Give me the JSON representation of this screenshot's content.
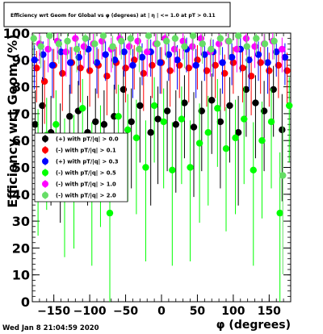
{
  "chart_data": {
    "type": "scatter",
    "title": "Efficiency wrt Geom for Global vs φ (degrees) at | η | <= 1.0 at pT > 0.11",
    "xlabel": "φ (degrees)",
    "ylabel": "Efficiency wrt Geom (%)",
    "xlim": [
      -180,
      180
    ],
    "ylim": [
      0,
      100
    ],
    "x_ticks": [
      -150,
      -100,
      -50,
      0,
      50,
      100,
      150
    ],
    "y_ticks": [
      0,
      10,
      20,
      30,
      40,
      50,
      60,
      70,
      80,
      90,
      100
    ],
    "legend_position": "left-middle",
    "timestamp": "Wed Jan  8 21:04:59 2020",
    "series": [
      {
        "name": "(+) with pT/|q| > 0.0",
        "color": "#000000",
        "x": [
          -176,
          -166,
          -154,
          -141,
          -128,
          -116,
          -103,
          -92,
          -80,
          -66,
          -53,
          -42,
          -30,
          -15,
          -5,
          8,
          20,
          32,
          45,
          56,
          70,
          82,
          95,
          107,
          118,
          131,
          143,
          156,
          168
        ],
        "y": [
          66,
          73,
          63,
          59,
          69,
          71,
          63,
          67,
          66,
          69,
          79,
          67,
          73,
          63,
          68,
          71,
          66,
          74,
          65,
          71,
          75,
          67,
          73,
          63,
          79,
          74,
          71,
          79,
          64
        ]
      },
      {
        "name": "(-) with pT/|q| > 0.1",
        "color": "#ff0000",
        "x": [
          -174,
          -163,
          -150,
          -138,
          -125,
          -113,
          -100,
          -88,
          -76,
          -63,
          -50,
          -38,
          -25,
          -13,
          0,
          12,
          25,
          38,
          50,
          63,
          75,
          88,
          100,
          113,
          125,
          138,
          150,
          163,
          175
        ],
        "y": [
          87,
          82,
          88,
          85,
          89,
          87,
          86,
          88,
          84,
          89,
          87,
          90,
          85,
          88,
          89,
          86,
          88,
          87,
          90,
          86,
          88,
          85,
          89,
          87,
          84,
          89,
          86,
          88,
          86
        ]
      },
      {
        "name": "(+) with pT/|q| > 0.3",
        "color": "#0000ff",
        "x": [
          -177,
          -165,
          -152,
          -140,
          -127,
          -115,
          -102,
          -90,
          -78,
          -65,
          -52,
          -40,
          -27,
          -15,
          -2,
          10,
          22,
          35,
          48,
          60,
          72,
          85,
          98,
          110,
          122,
          135,
          148,
          160,
          172
        ],
        "y": [
          90,
          92,
          88,
          93,
          89,
          91,
          94,
          89,
          92,
          90,
          93,
          88,
          91,
          93,
          89,
          92,
          90,
          94,
          88,
          92,
          93,
          89,
          91,
          94,
          90,
          92,
          89,
          93,
          91
        ]
      },
      {
        "name": "(-) with pT/|q| > 0.5",
        "color": "#00ff00",
        "x": [
          -172,
          -160,
          -147,
          -135,
          -122,
          -110,
          -97,
          -85,
          -72,
          -60,
          -47,
          -35,
          -22,
          -10,
          3,
          15,
          28,
          40,
          53,
          65,
          78,
          90,
          103,
          115,
          128,
          140,
          153,
          165,
          178
        ],
        "y": [
          56,
          62,
          66,
          51,
          53,
          72,
          49,
          58,
          33,
          69,
          64,
          61,
          50,
          73,
          67,
          49,
          68,
          50,
          59,
          63,
          72,
          57,
          61,
          68,
          49,
          60,
          67,
          33,
          73
        ]
      },
      {
        "name": "(-) with pT/|q| > 1.0",
        "color": "#ff00ff",
        "x": [
          -170,
          -158,
          -145,
          -133,
          -120,
          -108,
          -95,
          -83,
          -70,
          -58,
          -45,
          -33,
          -20,
          -8,
          5,
          18,
          30,
          43,
          55,
          68,
          80,
          93,
          105,
          118,
          130,
          143,
          155,
          168
        ],
        "y": [
          96,
          94,
          97,
          93,
          98,
          95,
          96,
          97,
          94,
          98,
          95,
          97,
          93,
          96,
          98,
          94,
          97,
          95,
          98,
          93,
          96,
          97,
          94,
          98,
          95,
          96,
          97,
          94
        ]
      },
      {
        "name": "(-) with pT/|q| > 2.0",
        "color": "#66dd66",
        "x": [
          -178,
          -168,
          -156,
          -143,
          -131,
          -118,
          -106,
          -93,
          -81,
          -68,
          -56,
          -43,
          -31,
          -18,
          -6,
          7,
          19,
          32,
          44,
          57,
          69,
          82,
          94,
          107,
          119,
          132,
          144,
          157,
          169
        ],
        "y": [
          98,
          95,
          99,
          96,
          97,
          94,
          98,
          96,
          99,
          95,
          97,
          98,
          94,
          99,
          96,
          97,
          98,
          95,
          99,
          96,
          94,
          98,
          97,
          99,
          95,
          98,
          96,
          97,
          47
        ]
      }
    ]
  }
}
